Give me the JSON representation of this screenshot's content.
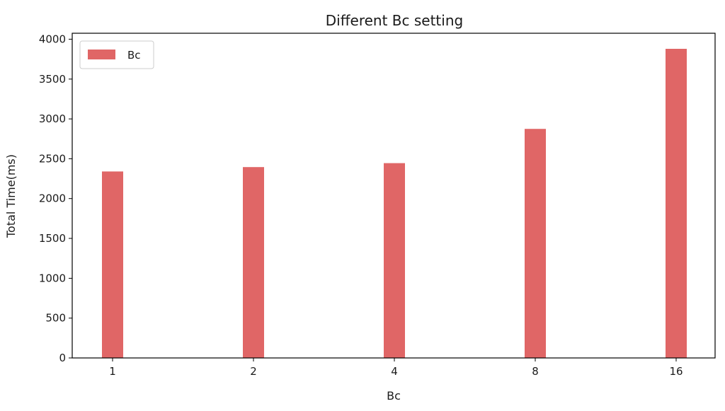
{
  "chart_data": {
    "type": "bar",
    "title": "Different Bc setting",
    "xlabel": "Bc",
    "ylabel": "Total Time(ms)",
    "categories": [
      "1",
      "2",
      "4",
      "8",
      "16"
    ],
    "series": [
      {
        "name": "Bc",
        "values": [
          2340,
          2395,
          2445,
          2875,
          3880
        ],
        "color": "#e06666"
      }
    ],
    "ylim": [
      0,
      4075
    ],
    "yticks": [
      0,
      500,
      1000,
      1500,
      2000,
      2500,
      3000,
      3500,
      4000
    ],
    "grid": false,
    "legend": "upper-left"
  }
}
